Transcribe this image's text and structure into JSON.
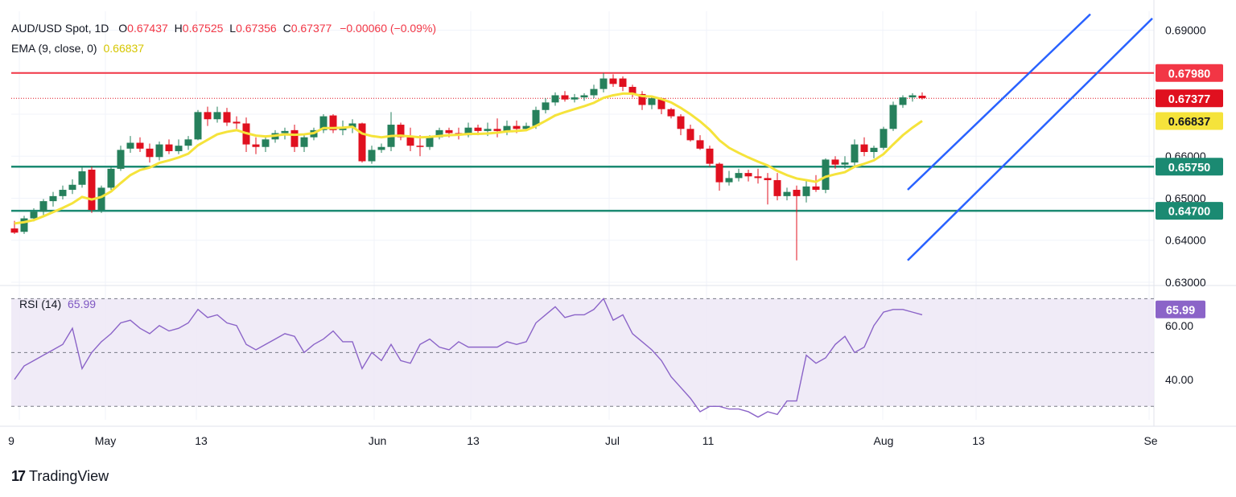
{
  "header": {
    "symbol": "AUD/USD Spot, 1D",
    "o_label": "O",
    "o_value": "0.67437",
    "h_label": "H",
    "h_value": "0.67525",
    "l_label": "L",
    "l_value": "0.67356",
    "c_label": "C",
    "c_value": "0.67377",
    "change": "−0.00060 (−0.09%)",
    "ema_label": "EMA (9, close, 0)",
    "ema_value": "0.66837",
    "rsi_label": "RSI (14)",
    "rsi_value": "65.99"
  },
  "branding": {
    "logo_icon": "tradingview-logo-icon",
    "name": "TradingView"
  },
  "colors": {
    "bull": "#26805c",
    "bear": "#e0101f",
    "ema": "#f5e33b",
    "rsi": "#8b64c8",
    "channel": "#2962ff",
    "resistance": "#f23645",
    "support": "#1b8a72"
  },
  "chart_data": [
    {
      "type": "candlestick",
      "title": "AUD/USD Spot, 1D",
      "x_ticks": [
        "9",
        "May",
        "13",
        "Jun",
        "13",
        "Jul",
        "11",
        "Aug",
        "13",
        "Se"
      ],
      "y_ticks": [
        "0.69000",
        "0.66000",
        "0.65000",
        "0.64000",
        "0.63000"
      ],
      "ylim": [
        0.6298,
        0.6945
      ],
      "price_labels": [
        {
          "text": "0.67980",
          "value": 0.6798,
          "kind": "resistance"
        },
        {
          "text": "0.67377",
          "value": 0.67377,
          "kind": "last"
        },
        {
          "text": "0.66837",
          "value": 0.66837,
          "kind": "ema"
        },
        {
          "text": "0.65750",
          "value": 0.6575,
          "kind": "support"
        },
        {
          "text": "0.64700",
          "value": 0.647,
          "kind": "support"
        }
      ],
      "ohlc": [
        [
          0.6428,
          0.6446,
          0.6415,
          0.6418
        ],
        [
          0.642,
          0.6458,
          0.6415,
          0.6452
        ],
        [
          0.6452,
          0.6476,
          0.6445,
          0.6468
        ],
        [
          0.6468,
          0.6498,
          0.646,
          0.6493
        ],
        [
          0.6493,
          0.6515,
          0.648,
          0.6505
        ],
        [
          0.6505,
          0.653,
          0.6497,
          0.652
        ],
        [
          0.652,
          0.6545,
          0.651,
          0.6532
        ],
        [
          0.6532,
          0.6575,
          0.6525,
          0.6564
        ],
        [
          0.6568,
          0.6575,
          0.6465,
          0.6472
        ],
        [
          0.6472,
          0.653,
          0.6465,
          0.6525
        ],
        [
          0.6525,
          0.6575,
          0.652,
          0.657
        ],
        [
          0.657,
          0.6625,
          0.6565,
          0.6615
        ],
        [
          0.6618,
          0.6648,
          0.6608,
          0.6632
        ],
        [
          0.6632,
          0.6645,
          0.661,
          0.6618
        ],
        [
          0.6618,
          0.663,
          0.6585,
          0.6598
        ],
        [
          0.6598,
          0.6635,
          0.659,
          0.6628
        ],
        [
          0.6628,
          0.664,
          0.6605,
          0.6612
        ],
        [
          0.6612,
          0.664,
          0.6605,
          0.6625
        ],
        [
          0.6625,
          0.6648,
          0.6615,
          0.664
        ],
        [
          0.664,
          0.671,
          0.6638,
          0.6705
        ],
        [
          0.6705,
          0.6718,
          0.6672,
          0.6688
        ],
        [
          0.6688,
          0.6718,
          0.668,
          0.6705
        ],
        [
          0.6705,
          0.6715,
          0.6672,
          0.668
        ],
        [
          0.6682,
          0.6695,
          0.6665,
          0.6678
        ],
        [
          0.6678,
          0.6692,
          0.661,
          0.6628
        ],
        [
          0.6628,
          0.6645,
          0.6605,
          0.6622
        ],
        [
          0.6622,
          0.6645,
          0.661,
          0.664
        ],
        [
          0.664,
          0.6662,
          0.6632,
          0.6655
        ],
        [
          0.6655,
          0.6668,
          0.664,
          0.666
        ],
        [
          0.6662,
          0.6675,
          0.661,
          0.6622
        ],
        [
          0.6622,
          0.665,
          0.661,
          0.6645
        ],
        [
          0.6645,
          0.6668,
          0.6638,
          0.6662
        ],
        [
          0.6662,
          0.67,
          0.6655,
          0.6695
        ],
        [
          0.6697,
          0.67,
          0.6655,
          0.6662
        ],
        [
          0.6662,
          0.6685,
          0.665,
          0.6668
        ],
        [
          0.6668,
          0.6688,
          0.6655,
          0.6678
        ],
        [
          0.6678,
          0.668,
          0.6585,
          0.6588
        ],
        [
          0.6588,
          0.6625,
          0.6582,
          0.6615
        ],
        [
          0.6615,
          0.663,
          0.6608,
          0.6622
        ],
        [
          0.6622,
          0.6705,
          0.6612,
          0.6675
        ],
        [
          0.6675,
          0.668,
          0.6638,
          0.6645
        ],
        [
          0.6645,
          0.6668,
          0.6612,
          0.6625
        ],
        [
          0.6625,
          0.665,
          0.66,
          0.6622
        ],
        [
          0.6622,
          0.665,
          0.6615,
          0.6645
        ],
        [
          0.6645,
          0.6668,
          0.664,
          0.6662
        ],
        [
          0.6662,
          0.6668,
          0.6645,
          0.6655
        ],
        [
          0.6655,
          0.6668,
          0.664,
          0.665
        ],
        [
          0.665,
          0.668,
          0.6645,
          0.6668
        ],
        [
          0.6668,
          0.6675,
          0.665,
          0.666
        ],
        [
          0.666,
          0.668,
          0.6648,
          0.6665
        ],
        [
          0.6665,
          0.669,
          0.6645,
          0.666
        ],
        [
          0.666,
          0.6685,
          0.665,
          0.6672
        ],
        [
          0.6672,
          0.6685,
          0.6655,
          0.6665
        ],
        [
          0.6665,
          0.668,
          0.666,
          0.6672
        ],
        [
          0.6672,
          0.6718,
          0.6665,
          0.671
        ],
        [
          0.671,
          0.6738,
          0.6702,
          0.6728
        ],
        [
          0.6728,
          0.6752,
          0.672,
          0.6745
        ],
        [
          0.6745,
          0.6755,
          0.673,
          0.6735
        ],
        [
          0.6735,
          0.6748,
          0.6728,
          0.674
        ],
        [
          0.674,
          0.675,
          0.6732,
          0.6745
        ],
        [
          0.6745,
          0.677,
          0.6738,
          0.676
        ],
        [
          0.676,
          0.6798,
          0.6752,
          0.6785
        ],
        [
          0.6785,
          0.6795,
          0.6765,
          0.6772
        ],
        [
          0.6785,
          0.679,
          0.6755,
          0.6765
        ],
        [
          0.6765,
          0.677,
          0.674,
          0.6748
        ],
        [
          0.6748,
          0.6755,
          0.671,
          0.6722
        ],
        [
          0.6722,
          0.6745,
          0.6712,
          0.6738
        ],
        [
          0.6738,
          0.674,
          0.67,
          0.6712
        ],
        [
          0.6712,
          0.6715,
          0.669,
          0.6695
        ],
        [
          0.6695,
          0.67,
          0.665,
          0.6665
        ],
        [
          0.6665,
          0.6675,
          0.6635,
          0.6638
        ],
        [
          0.6638,
          0.665,
          0.6615,
          0.6618
        ],
        [
          0.6618,
          0.6625,
          0.6575,
          0.6582
        ],
        [
          0.6582,
          0.6585,
          0.6518,
          0.6538
        ],
        [
          0.6538,
          0.6565,
          0.653,
          0.6548
        ],
        [
          0.6548,
          0.657,
          0.654,
          0.656
        ],
        [
          0.656,
          0.6568,
          0.654,
          0.6552
        ],
        [
          0.6552,
          0.657,
          0.6535,
          0.6548
        ],
        [
          0.6548,
          0.656,
          0.6485,
          0.6543
        ],
        [
          0.6543,
          0.656,
          0.6495,
          0.6505
        ],
        [
          0.6505,
          0.6525,
          0.6495,
          0.6515
        ],
        [
          0.652,
          0.653,
          0.6352,
          0.6505
        ],
        [
          0.6505,
          0.6545,
          0.649,
          0.6528
        ],
        [
          0.6528,
          0.6555,
          0.6515,
          0.652
        ],
        [
          0.652,
          0.6595,
          0.6512,
          0.6592
        ],
        [
          0.6592,
          0.66,
          0.657,
          0.658
        ],
        [
          0.658,
          0.66,
          0.657,
          0.6585
        ],
        [
          0.6585,
          0.664,
          0.6575,
          0.6628
        ],
        [
          0.6628,
          0.6645,
          0.66,
          0.661
        ],
        [
          0.661,
          0.6625,
          0.6595,
          0.662
        ],
        [
          0.662,
          0.667,
          0.6615,
          0.6665
        ],
        [
          0.6665,
          0.673,
          0.666,
          0.6722
        ],
        [
          0.6722,
          0.6745,
          0.6715,
          0.674
        ],
        [
          0.674,
          0.675,
          0.673,
          0.6745
        ],
        [
          0.6744,
          0.6752,
          0.6735,
          0.6738
        ]
      ],
      "ema": [
        0.644,
        0.6443,
        0.6448,
        0.6457,
        0.6467,
        0.6477,
        0.6488,
        0.6503,
        0.6497,
        0.6503,
        0.6516,
        0.6536,
        0.6555,
        0.6567,
        0.6573,
        0.6584,
        0.659,
        0.6597,
        0.6606,
        0.6626,
        0.6639,
        0.6652,
        0.6658,
        0.6662,
        0.6655,
        0.6649,
        0.6647,
        0.6649,
        0.6652,
        0.6651,
        0.6652,
        0.6655,
        0.6667,
        0.6667,
        0.6668,
        0.667,
        0.6654,
        0.6648,
        0.6645,
        0.6648,
        0.6649,
        0.6647,
        0.6645,
        0.6646,
        0.6648,
        0.665,
        0.6651,
        0.6653,
        0.6653,
        0.6654,
        0.6656,
        0.6659,
        0.666,
        0.6662,
        0.6672,
        0.6684,
        0.6697,
        0.6705,
        0.6712,
        0.6719,
        0.6727,
        0.6739,
        0.6745,
        0.6749,
        0.6749,
        0.6743,
        0.6742,
        0.6736,
        0.6728,
        0.6715,
        0.67,
        0.6683,
        0.6663,
        0.6638,
        0.662,
        0.6608,
        0.6597,
        0.6587,
        0.6578,
        0.6565,
        0.6555,
        0.6547,
        0.6543,
        0.6539,
        0.6551,
        0.6557,
        0.6562,
        0.6575,
        0.6582,
        0.659,
        0.6605,
        0.6628,
        0.665,
        0.6668,
        0.6684
      ],
      "rsi_ylim": [
        25,
        74
      ],
      "rsi_ticks": [
        "60.00",
        "40.00"
      ],
      "rsi_levels": [
        70,
        50,
        30
      ],
      "rsi": [
        40,
        45,
        47,
        49,
        51,
        53,
        59,
        44,
        50,
        54,
        57,
        61,
        62,
        59,
        57,
        60,
        58,
        59,
        61,
        66,
        63,
        64,
        61,
        60,
        53,
        51,
        53,
        55,
        57,
        56,
        50,
        53,
        55,
        58,
        54,
        54,
        44,
        50,
        47,
        53,
        47,
        46,
        53,
        55,
        52,
        51,
        54,
        52,
        52,
        52,
        52,
        54,
        53,
        54,
        61,
        64,
        67,
        63,
        64,
        64,
        66,
        70,
        62,
        64,
        57,
        54,
        51,
        47,
        41,
        37,
        33,
        28,
        30,
        30,
        29,
        29,
        28,
        26,
        28,
        27,
        32,
        32,
        49,
        46,
        48,
        53,
        56,
        50,
        52,
        60,
        65,
        66,
        66,
        65,
        64
      ]
    }
  ]
}
